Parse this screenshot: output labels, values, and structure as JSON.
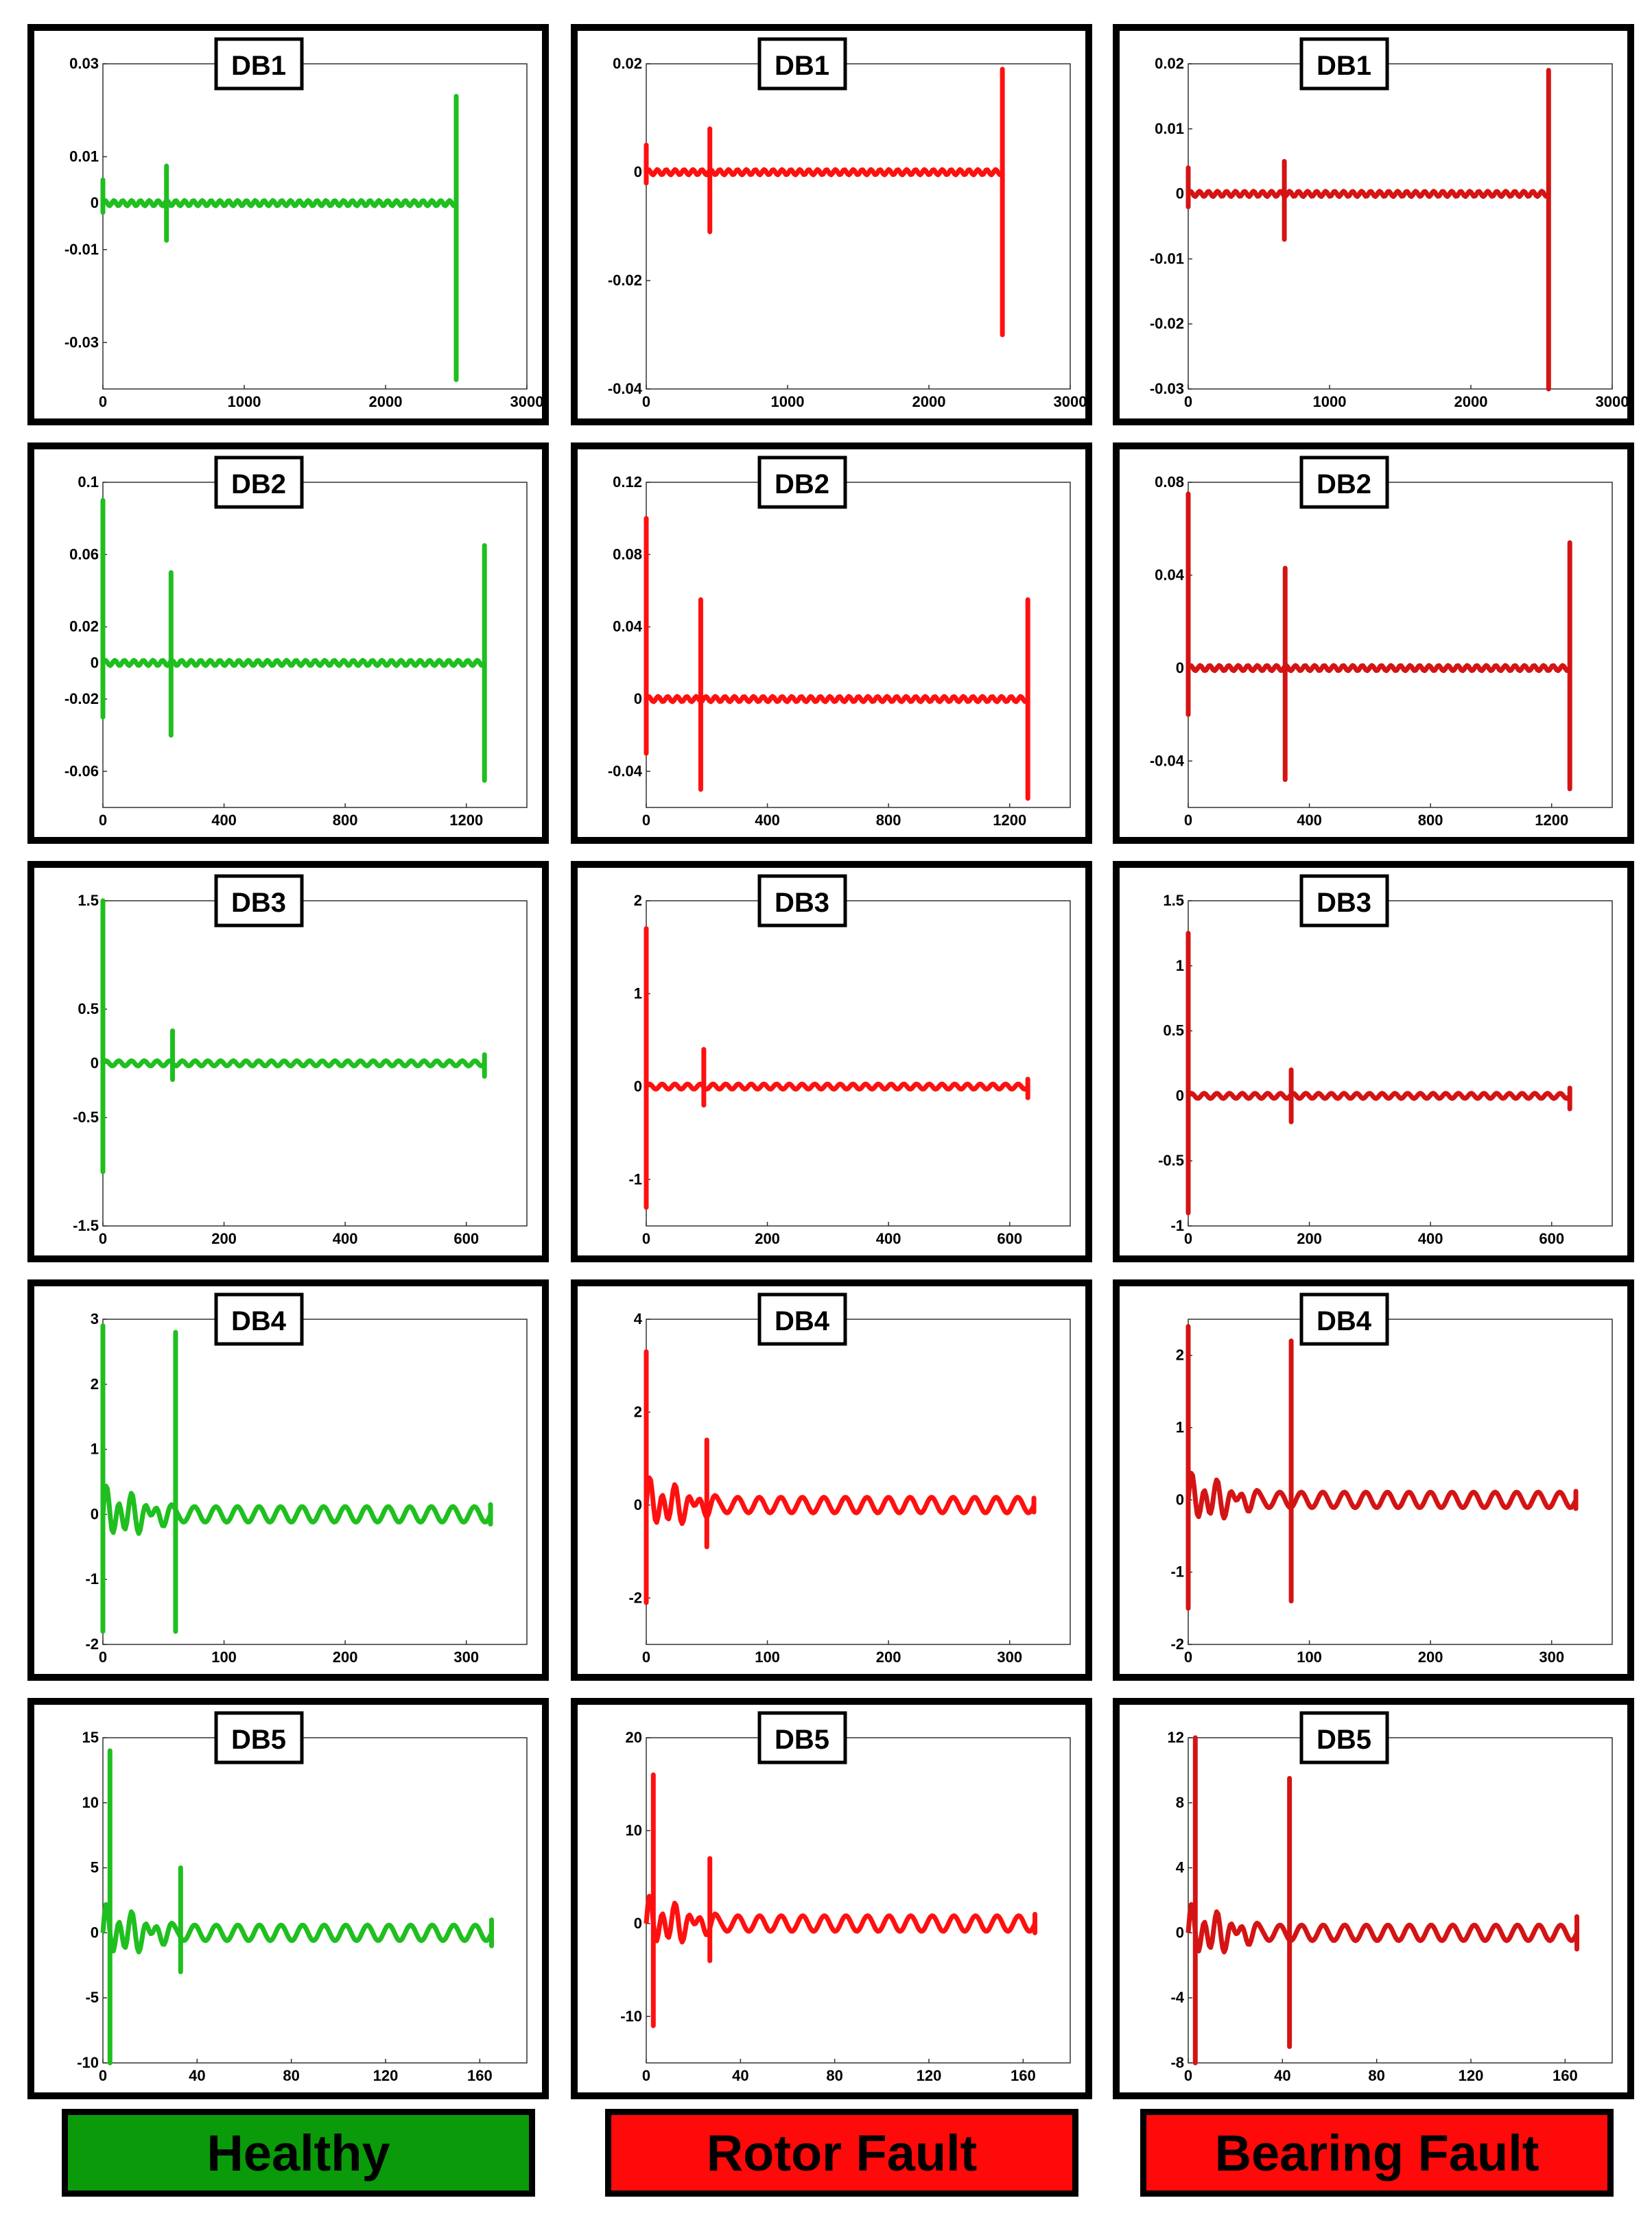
{
  "columns": [
    {
      "label": "Healthy",
      "color": "#1fbf1f",
      "label_bg": "#0a9a0a"
    },
    {
      "label": "Rotor Fault",
      "color": "#ff1010",
      "label_bg": "#ff0a0a"
    },
    {
      "label": "Bearing Fault",
      "color": "#d41414",
      "label_bg": "#ff0a0a"
    }
  ],
  "chart_data": [
    {
      "type": "line",
      "row": 0,
      "col": 0,
      "title": "DB1",
      "x": [
        0,
        2500
      ],
      "xticks": [
        0,
        1000,
        2000,
        3000
      ],
      "xtick_labels": [
        "0",
        "1000",
        "2000",
        "3000"
      ],
      "xlim": [
        0,
        3000
      ],
      "yticks": [
        0.03,
        0.01,
        0,
        -0.01,
        -0.03
      ],
      "ytick_labels": [
        "0.03",
        "0.01",
        "0",
        "-0.01",
        "-0.03"
      ],
      "ylim": [
        -0.04,
        0.03
      ],
      "spikes": [
        [
          0,
          0.005,
          -0.002
        ],
        [
          450,
          0.008,
          -0.008
        ],
        [
          2500,
          0.023,
          -0.038
        ]
      ]
    },
    {
      "type": "line",
      "row": 0,
      "col": 1,
      "title": "DB1",
      "x": [
        0,
        2520
      ],
      "xticks": [
        0,
        1000,
        2000,
        3000
      ],
      "xtick_labels": [
        "0",
        "1000",
        "2000",
        "3000"
      ],
      "xlim": [
        0,
        3000
      ],
      "yticks": [
        0.02,
        0,
        -0.02,
        -0.04
      ],
      "ytick_labels": [
        "0.02",
        "0",
        "-0.02",
        "-0.04"
      ],
      "ylim": [
        -0.04,
        0.02
      ],
      "spikes": [
        [
          0,
          0.005,
          -0.002
        ],
        [
          450,
          0.008,
          -0.011
        ],
        [
          2520,
          0.019,
          -0.03
        ]
      ]
    },
    {
      "type": "line",
      "row": 0,
      "col": 2,
      "title": "DB1",
      "x": [
        0,
        2550
      ],
      "xticks": [
        0,
        1000,
        2000,
        3000
      ],
      "xtick_labels": [
        "0",
        "1000",
        "2000",
        "3000"
      ],
      "xlim": [
        0,
        3000
      ],
      "yticks": [
        0.02,
        0.01,
        0,
        -0.01,
        -0.02,
        -0.03
      ],
      "ytick_labels": [
        "0.02",
        "0.01",
        "0",
        "-0.01",
        "-0.02",
        "-0.03"
      ],
      "ylim": [
        -0.03,
        0.02
      ],
      "spikes": [
        [
          0,
          0.004,
          -0.002
        ],
        [
          680,
          0.005,
          -0.007
        ],
        [
          2550,
          0.019,
          -0.03
        ]
      ]
    },
    {
      "type": "line",
      "row": 1,
      "col": 0,
      "title": "DB2",
      "x": [
        0,
        1260
      ],
      "xticks": [
        0,
        400,
        800,
        1200
      ],
      "xtick_labels": [
        "0",
        "400",
        "800",
        "1200"
      ],
      "xlim": [
        0,
        1400
      ],
      "yticks": [
        0.1,
        0.06,
        0.02,
        0,
        -0.02,
        -0.06
      ],
      "ytick_labels": [
        "0.1",
        "0.06",
        "0.02",
        "0",
        "-0.02",
        "-0.06"
      ],
      "ylim": [
        -0.08,
        0.1
      ],
      "spikes": [
        [
          0,
          0.09,
          -0.03
        ],
        [
          225,
          0.05,
          -0.04
        ],
        [
          1260,
          0.065,
          -0.065
        ]
      ]
    },
    {
      "type": "line",
      "row": 1,
      "col": 1,
      "title": "DB2",
      "x": [
        0,
        1260
      ],
      "xticks": [
        0,
        400,
        800,
        1200
      ],
      "xtick_labels": [
        "0",
        "400",
        "800",
        "1200"
      ],
      "xlim": [
        0,
        1400
      ],
      "yticks": [
        0.12,
        0.08,
        0.04,
        0,
        -0.04
      ],
      "ytick_labels": [
        "0.12",
        "0.08",
        "0.04",
        "0",
        "-0.04"
      ],
      "ylim": [
        -0.06,
        0.12
      ],
      "spikes": [
        [
          0,
          0.1,
          -0.03
        ],
        [
          180,
          0.055,
          -0.05
        ],
        [
          1260,
          0.055,
          -0.055
        ]
      ]
    },
    {
      "type": "line",
      "row": 1,
      "col": 2,
      "title": "DB2",
      "x": [
        0,
        1260
      ],
      "xticks": [
        0,
        400,
        800,
        1200
      ],
      "xtick_labels": [
        "0",
        "400",
        "800",
        "1200"
      ],
      "xlim": [
        0,
        1400
      ],
      "yticks": [
        0.08,
        0.04,
        0,
        -0.04
      ],
      "ytick_labels": [
        "0.08",
        "0.04",
        "0",
        "-0.04"
      ],
      "ylim": [
        -0.06,
        0.08
      ],
      "spikes": [
        [
          0,
          0.075,
          -0.02
        ],
        [
          320,
          0.043,
          -0.048
        ],
        [
          1260,
          0.054,
          -0.052
        ]
      ]
    },
    {
      "type": "line",
      "row": 2,
      "col": 0,
      "title": "DB3",
      "x": [
        0,
        630
      ],
      "xticks": [
        0,
        200,
        400,
        600
      ],
      "xtick_labels": [
        "0",
        "200",
        "400",
        "600"
      ],
      "xlim": [
        0,
        700
      ],
      "yticks": [
        1.5,
        0.5,
        0,
        -0.5,
        -1.5
      ],
      "ytick_labels": [
        "1.5",
        "0.5",
        "0",
        "-0.5",
        "-1.5"
      ],
      "ylim": [
        -1.5,
        1.5
      ],
      "spikes": [
        [
          0,
          1.5,
          -1.0
        ],
        [
          115,
          0.3,
          -0.15
        ],
        [
          630,
          0.08,
          -0.12
        ]
      ]
    },
    {
      "type": "line",
      "row": 2,
      "col": 1,
      "title": "DB3",
      "x": [
        0,
        630
      ],
      "xticks": [
        0,
        200,
        400,
        600
      ],
      "xtick_labels": [
        "0",
        "200",
        "400",
        "600"
      ],
      "xlim": [
        0,
        700
      ],
      "yticks": [
        2,
        1,
        0,
        -1
      ],
      "ytick_labels": [
        "2",
        "1",
        "0",
        "-1"
      ],
      "ylim": [
        -1.5,
        2
      ],
      "spikes": [
        [
          0,
          1.7,
          -1.3
        ],
        [
          95,
          0.4,
          -0.2
        ],
        [
          630,
          0.08,
          -0.12
        ]
      ]
    },
    {
      "type": "line",
      "row": 2,
      "col": 2,
      "title": "DB3",
      "x": [
        0,
        630
      ],
      "xticks": [
        0,
        200,
        400,
        600
      ],
      "xtick_labels": [
        "0",
        "200",
        "400",
        "600"
      ],
      "xlim": [
        0,
        700
      ],
      "yticks": [
        1.5,
        1,
        0.5,
        0,
        -0.5,
        -1
      ],
      "ytick_labels": [
        "1.5",
        "1",
        "0.5",
        "0",
        "-0.5",
        "-1"
      ],
      "ylim": [
        -1,
        1.5
      ],
      "spikes": [
        [
          0,
          1.25,
          -0.9
        ],
        [
          170,
          0.2,
          -0.2
        ],
        [
          630,
          0.06,
          -0.1
        ]
      ]
    },
    {
      "type": "line",
      "row": 3,
      "col": 0,
      "title": "DB4",
      "x": [
        0,
        320
      ],
      "xticks": [
        0,
        100,
        200,
        300
      ],
      "xtick_labels": [
        "0",
        "100",
        "200",
        "300"
      ],
      "xlim": [
        0,
        350
      ],
      "yticks": [
        3,
        2,
        1,
        0,
        -1,
        -2
      ],
      "ytick_labels": [
        "3",
        "2",
        "1",
        "0",
        "-1",
        "-2"
      ],
      "ylim": [
        -2,
        3
      ],
      "spikes": [
        [
          0,
          2.9,
          -1.8
        ],
        [
          60,
          2.8,
          -1.8
        ],
        [
          320,
          0.15,
          -0.15
        ]
      ]
    },
    {
      "type": "line",
      "row": 3,
      "col": 1,
      "title": "DB4",
      "x": [
        0,
        320
      ],
      "xticks": [
        0,
        100,
        200,
        300
      ],
      "xtick_labels": [
        "0",
        "100",
        "200",
        "300"
      ],
      "xlim": [
        0,
        350
      ],
      "yticks": [
        4,
        2,
        0,
        -2
      ],
      "ytick_labels": [
        "4",
        "2",
        "0",
        "-2"
      ],
      "ylim": [
        -3,
        4
      ],
      "spikes": [
        [
          0,
          3.3,
          -2.1
        ],
        [
          50,
          1.4,
          -0.9
        ],
        [
          320,
          0.15,
          -0.15
        ]
      ]
    },
    {
      "type": "line",
      "row": 3,
      "col": 2,
      "title": "DB4",
      "x": [
        0,
        320
      ],
      "xticks": [
        0,
        100,
        200,
        300
      ],
      "xtick_labels": [
        "0",
        "100",
        "200",
        "300"
      ],
      "xlim": [
        0,
        350
      ],
      "yticks": [
        2,
        1,
        0,
        -1,
        -2
      ],
      "ytick_labels": [
        "2",
        "1",
        "0",
        "-1",
        "-2"
      ],
      "ylim": [
        -2,
        2.5
      ],
      "spikes": [
        [
          0,
          2.4,
          -1.5
        ],
        [
          85,
          2.2,
          -1.4
        ],
        [
          320,
          0.12,
          -0.12
        ]
      ]
    },
    {
      "type": "line",
      "row": 4,
      "col": 0,
      "title": "DB5",
      "x": [
        0,
        165
      ],
      "xticks": [
        0,
        40,
        80,
        120,
        160
      ],
      "xtick_labels": [
        "0",
        "40",
        "80",
        "120",
        "160"
      ],
      "xlim": [
        0,
        180
      ],
      "yticks": [
        15,
        10,
        5,
        0,
        -5,
        -10
      ],
      "ytick_labels": [
        "15",
        "10",
        "5",
        "0",
        "-5",
        "-10"
      ],
      "ylim": [
        -10,
        15
      ],
      "spikes": [
        [
          3,
          14,
          -10
        ],
        [
          33,
          5,
          -3
        ],
        [
          165,
          1,
          -1
        ]
      ]
    },
    {
      "type": "line",
      "row": 4,
      "col": 1,
      "title": "DB5",
      "x": [
        0,
        165
      ],
      "xticks": [
        0,
        40,
        80,
        120,
        160
      ],
      "xtick_labels": [
        "0",
        "40",
        "80",
        "120",
        "160"
      ],
      "xlim": [
        0,
        180
      ],
      "yticks": [
        20,
        10,
        0,
        -10
      ],
      "ytick_labels": [
        "20",
        "10",
        "0",
        "-10"
      ],
      "ylim": [
        -15,
        20
      ],
      "spikes": [
        [
          3,
          16,
          -11
        ],
        [
          27,
          7,
          -4
        ],
        [
          165,
          1,
          -1
        ]
      ]
    },
    {
      "type": "line",
      "row": 4,
      "col": 2,
      "title": "DB5",
      "x": [
        0,
        165
      ],
      "xticks": [
        0,
        40,
        80,
        120,
        160
      ],
      "xtick_labels": [
        "0",
        "40",
        "80",
        "120",
        "160"
      ],
      "xlim": [
        0,
        180
      ],
      "yticks": [
        12,
        8,
        4,
        0,
        -4,
        -8
      ],
      "ytick_labels": [
        "12",
        "8",
        "4",
        "0",
        "-4",
        "-8"
      ],
      "ylim": [
        -8,
        12
      ],
      "spikes": [
        [
          3,
          12,
          -8
        ],
        [
          43,
          9.5,
          -7
        ],
        [
          165,
          1,
          -1
        ]
      ]
    }
  ]
}
